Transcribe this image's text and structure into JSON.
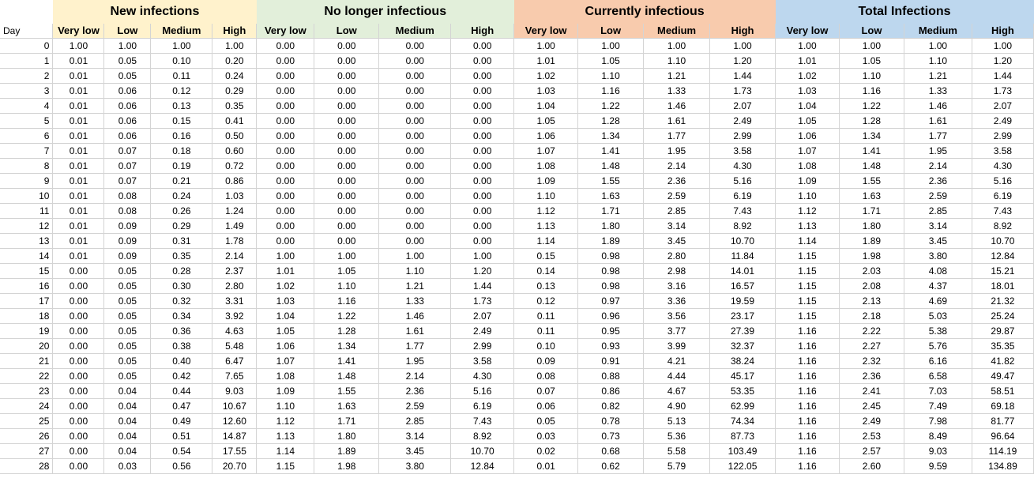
{
  "corner_label": "Day",
  "groups": [
    {
      "title": "New infections",
      "color": "#fff2cc"
    },
    {
      "title": "No longer infectious",
      "color": "#e2efda"
    },
    {
      "title": "Currently infectious",
      "color": "#f8cbad"
    },
    {
      "title": "Total Infections",
      "color": "#bdd7ee"
    }
  ],
  "subheaders": [
    "Very low",
    "Low",
    "Medium",
    "High"
  ],
  "rows": [
    [
      "0",
      "1.00",
      "1.00",
      "1.00",
      "1.00",
      "0.00",
      "0.00",
      "0.00",
      "0.00",
      "1.00",
      "1.00",
      "1.00",
      "1.00",
      "1.00",
      "1.00",
      "1.00",
      "1.00"
    ],
    [
      "1",
      "0.01",
      "0.05",
      "0.10",
      "0.20",
      "0.00",
      "0.00",
      "0.00",
      "0.00",
      "1.01",
      "1.05",
      "1.10",
      "1.20",
      "1.01",
      "1.05",
      "1.10",
      "1.20"
    ],
    [
      "2",
      "0.01",
      "0.05",
      "0.11",
      "0.24",
      "0.00",
      "0.00",
      "0.00",
      "0.00",
      "1.02",
      "1.10",
      "1.21",
      "1.44",
      "1.02",
      "1.10",
      "1.21",
      "1.44"
    ],
    [
      "3",
      "0.01",
      "0.06",
      "0.12",
      "0.29",
      "0.00",
      "0.00",
      "0.00",
      "0.00",
      "1.03",
      "1.16",
      "1.33",
      "1.73",
      "1.03",
      "1.16",
      "1.33",
      "1.73"
    ],
    [
      "4",
      "0.01",
      "0.06",
      "0.13",
      "0.35",
      "0.00",
      "0.00",
      "0.00",
      "0.00",
      "1.04",
      "1.22",
      "1.46",
      "2.07",
      "1.04",
      "1.22",
      "1.46",
      "2.07"
    ],
    [
      "5",
      "0.01",
      "0.06",
      "0.15",
      "0.41",
      "0.00",
      "0.00",
      "0.00",
      "0.00",
      "1.05",
      "1.28",
      "1.61",
      "2.49",
      "1.05",
      "1.28",
      "1.61",
      "2.49"
    ],
    [
      "6",
      "0.01",
      "0.06",
      "0.16",
      "0.50",
      "0.00",
      "0.00",
      "0.00",
      "0.00",
      "1.06",
      "1.34",
      "1.77",
      "2.99",
      "1.06",
      "1.34",
      "1.77",
      "2.99"
    ],
    [
      "7",
      "0.01",
      "0.07",
      "0.18",
      "0.60",
      "0.00",
      "0.00",
      "0.00",
      "0.00",
      "1.07",
      "1.41",
      "1.95",
      "3.58",
      "1.07",
      "1.41",
      "1.95",
      "3.58"
    ],
    [
      "8",
      "0.01",
      "0.07",
      "0.19",
      "0.72",
      "0.00",
      "0.00",
      "0.00",
      "0.00",
      "1.08",
      "1.48",
      "2.14",
      "4.30",
      "1.08",
      "1.48",
      "2.14",
      "4.30"
    ],
    [
      "9",
      "0.01",
      "0.07",
      "0.21",
      "0.86",
      "0.00",
      "0.00",
      "0.00",
      "0.00",
      "1.09",
      "1.55",
      "2.36",
      "5.16",
      "1.09",
      "1.55",
      "2.36",
      "5.16"
    ],
    [
      "10",
      "0.01",
      "0.08",
      "0.24",
      "1.03",
      "0.00",
      "0.00",
      "0.00",
      "0.00",
      "1.10",
      "1.63",
      "2.59",
      "6.19",
      "1.10",
      "1.63",
      "2.59",
      "6.19"
    ],
    [
      "11",
      "0.01",
      "0.08",
      "0.26",
      "1.24",
      "0.00",
      "0.00",
      "0.00",
      "0.00",
      "1.12",
      "1.71",
      "2.85",
      "7.43",
      "1.12",
      "1.71",
      "2.85",
      "7.43"
    ],
    [
      "12",
      "0.01",
      "0.09",
      "0.29",
      "1.49",
      "0.00",
      "0.00",
      "0.00",
      "0.00",
      "1.13",
      "1.80",
      "3.14",
      "8.92",
      "1.13",
      "1.80",
      "3.14",
      "8.92"
    ],
    [
      "13",
      "0.01",
      "0.09",
      "0.31",
      "1.78",
      "0.00",
      "0.00",
      "0.00",
      "0.00",
      "1.14",
      "1.89",
      "3.45",
      "10.70",
      "1.14",
      "1.89",
      "3.45",
      "10.70"
    ],
    [
      "14",
      "0.01",
      "0.09",
      "0.35",
      "2.14",
      "1.00",
      "1.00",
      "1.00",
      "1.00",
      "0.15",
      "0.98",
      "2.80",
      "11.84",
      "1.15",
      "1.98",
      "3.80",
      "12.84"
    ],
    [
      "15",
      "0.00",
      "0.05",
      "0.28",
      "2.37",
      "1.01",
      "1.05",
      "1.10",
      "1.20",
      "0.14",
      "0.98",
      "2.98",
      "14.01",
      "1.15",
      "2.03",
      "4.08",
      "15.21"
    ],
    [
      "16",
      "0.00",
      "0.05",
      "0.30",
      "2.80",
      "1.02",
      "1.10",
      "1.21",
      "1.44",
      "0.13",
      "0.98",
      "3.16",
      "16.57",
      "1.15",
      "2.08",
      "4.37",
      "18.01"
    ],
    [
      "17",
      "0.00",
      "0.05",
      "0.32",
      "3.31",
      "1.03",
      "1.16",
      "1.33",
      "1.73",
      "0.12",
      "0.97",
      "3.36",
      "19.59",
      "1.15",
      "2.13",
      "4.69",
      "21.32"
    ],
    [
      "18",
      "0.00",
      "0.05",
      "0.34",
      "3.92",
      "1.04",
      "1.22",
      "1.46",
      "2.07",
      "0.11",
      "0.96",
      "3.56",
      "23.17",
      "1.15",
      "2.18",
      "5.03",
      "25.24"
    ],
    [
      "19",
      "0.00",
      "0.05",
      "0.36",
      "4.63",
      "1.05",
      "1.28",
      "1.61",
      "2.49",
      "0.11",
      "0.95",
      "3.77",
      "27.39",
      "1.16",
      "2.22",
      "5.38",
      "29.87"
    ],
    [
      "20",
      "0.00",
      "0.05",
      "0.38",
      "5.48",
      "1.06",
      "1.34",
      "1.77",
      "2.99",
      "0.10",
      "0.93",
      "3.99",
      "32.37",
      "1.16",
      "2.27",
      "5.76",
      "35.35"
    ],
    [
      "21",
      "0.00",
      "0.05",
      "0.40",
      "6.47",
      "1.07",
      "1.41",
      "1.95",
      "3.58",
      "0.09",
      "0.91",
      "4.21",
      "38.24",
      "1.16",
      "2.32",
      "6.16",
      "41.82"
    ],
    [
      "22",
      "0.00",
      "0.05",
      "0.42",
      "7.65",
      "1.08",
      "1.48",
      "2.14",
      "4.30",
      "0.08",
      "0.88",
      "4.44",
      "45.17",
      "1.16",
      "2.36",
      "6.58",
      "49.47"
    ],
    [
      "23",
      "0.00",
      "0.04",
      "0.44",
      "9.03",
      "1.09",
      "1.55",
      "2.36",
      "5.16",
      "0.07",
      "0.86",
      "4.67",
      "53.35",
      "1.16",
      "2.41",
      "7.03",
      "58.51"
    ],
    [
      "24",
      "0.00",
      "0.04",
      "0.47",
      "10.67",
      "1.10",
      "1.63",
      "2.59",
      "6.19",
      "0.06",
      "0.82",
      "4.90",
      "62.99",
      "1.16",
      "2.45",
      "7.49",
      "69.18"
    ],
    [
      "25",
      "0.00",
      "0.04",
      "0.49",
      "12.60",
      "1.12",
      "1.71",
      "2.85",
      "7.43",
      "0.05",
      "0.78",
      "5.13",
      "74.34",
      "1.16",
      "2.49",
      "7.98",
      "81.77"
    ],
    [
      "26",
      "0.00",
      "0.04",
      "0.51",
      "14.87",
      "1.13",
      "1.80",
      "3.14",
      "8.92",
      "0.03",
      "0.73",
      "5.36",
      "87.73",
      "1.16",
      "2.53",
      "8.49",
      "96.64"
    ],
    [
      "27",
      "0.00",
      "0.04",
      "0.54",
      "17.55",
      "1.14",
      "1.89",
      "3.45",
      "10.70",
      "0.02",
      "0.68",
      "5.58",
      "103.49",
      "1.16",
      "2.57",
      "9.03",
      "114.19"
    ],
    [
      "28",
      "0.00",
      "0.03",
      "0.56",
      "20.70",
      "1.15",
      "1.98",
      "3.80",
      "12.84",
      "0.01",
      "0.62",
      "5.79",
      "122.05",
      "1.16",
      "2.60",
      "9.59",
      "134.89"
    ]
  ]
}
